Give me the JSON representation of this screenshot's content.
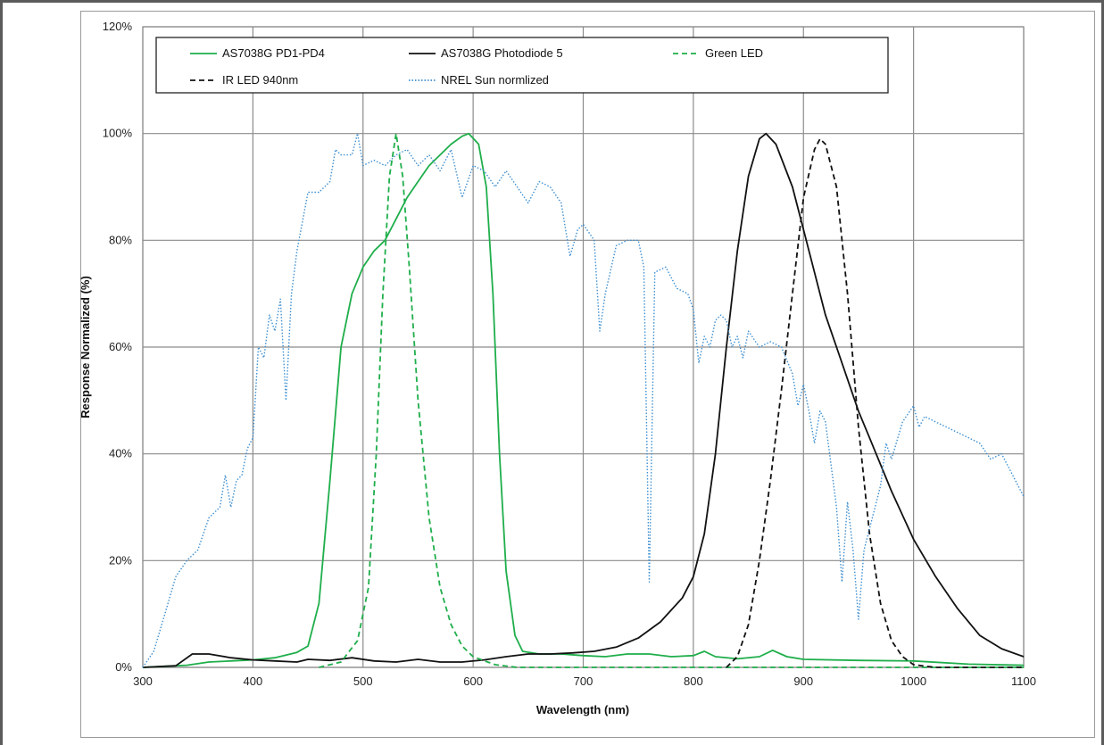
{
  "chart_data": {
    "type": "line",
    "title": "",
    "xlabel": "Wavelength (nm)",
    "ylabel": "Response  Normalized (%)",
    "xlim": [
      300,
      1100
    ],
    "ylim": [
      0,
      120
    ],
    "x_ticks": [
      "300",
      "400",
      "500",
      "600",
      "700",
      "800",
      "900",
      "1000",
      "1100"
    ],
    "y_ticks": [
      "0%",
      "20%",
      "40%",
      "60%",
      "80%",
      "100%",
      "120%"
    ],
    "grid": true,
    "legend_position": "top",
    "series": [
      {
        "name": "AS7038G PD1-PD4",
        "color": "#1fae4b",
        "style": "solid",
        "points": [
          [
            300,
            0
          ],
          [
            320,
            0.2
          ],
          [
            340,
            0.4
          ],
          [
            360,
            1
          ],
          [
            380,
            1.2
          ],
          [
            400,
            1.4
          ],
          [
            420,
            1.8
          ],
          [
            440,
            2.8
          ],
          [
            450,
            4
          ],
          [
            460,
            12
          ],
          [
            470,
            35
          ],
          [
            480,
            60
          ],
          [
            490,
            70
          ],
          [
            500,
            75
          ],
          [
            510,
            78
          ],
          [
            520,
            80
          ],
          [
            530,
            84
          ],
          [
            540,
            88
          ],
          [
            550,
            91
          ],
          [
            560,
            94
          ],
          [
            570,
            96
          ],
          [
            580,
            98
          ],
          [
            590,
            99.5
          ],
          [
            596,
            100
          ],
          [
            605,
            98
          ],
          [
            612,
            90
          ],
          [
            618,
            70
          ],
          [
            624,
            40
          ],
          [
            630,
            18
          ],
          [
            638,
            6
          ],
          [
            645,
            3
          ],
          [
            660,
            2.5
          ],
          [
            680,
            2.5
          ],
          [
            700,
            2.2
          ],
          [
            720,
            2
          ],
          [
            740,
            2.5
          ],
          [
            760,
            2.5
          ],
          [
            780,
            2
          ],
          [
            800,
            2.2
          ],
          [
            810,
            3
          ],
          [
            820,
            2
          ],
          [
            840,
            1.6
          ],
          [
            860,
            2
          ],
          [
            872,
            3.2
          ],
          [
            885,
            2
          ],
          [
            900,
            1.5
          ],
          [
            950,
            1.3
          ],
          [
            1000,
            1.2
          ],
          [
            1050,
            0.6
          ],
          [
            1100,
            0.4
          ]
        ]
      },
      {
        "name": "AS7038G Photodiode 5",
        "color": "#111111",
        "style": "solid",
        "points": [
          [
            300,
            0
          ],
          [
            330,
            0.3
          ],
          [
            345,
            2.5
          ],
          [
            360,
            2.5
          ],
          [
            380,
            1.8
          ],
          [
            400,
            1.4
          ],
          [
            420,
            1.2
          ],
          [
            440,
            1
          ],
          [
            450,
            1.5
          ],
          [
            470,
            1.3
          ],
          [
            490,
            1.8
          ],
          [
            510,
            1.2
          ],
          [
            530,
            1
          ],
          [
            550,
            1.5
          ],
          [
            570,
            1
          ],
          [
            590,
            1
          ],
          [
            610,
            1.4
          ],
          [
            630,
            2
          ],
          [
            650,
            2.5
          ],
          [
            670,
            2.5
          ],
          [
            690,
            2.7
          ],
          [
            710,
            3
          ],
          [
            730,
            3.8
          ],
          [
            750,
            5.5
          ],
          [
            770,
            8.5
          ],
          [
            790,
            13
          ],
          [
            800,
            17
          ],
          [
            810,
            25
          ],
          [
            820,
            40
          ],
          [
            830,
            60
          ],
          [
            840,
            78
          ],
          [
            850,
            92
          ],
          [
            860,
            99
          ],
          [
            866,
            100
          ],
          [
            875,
            98
          ],
          [
            890,
            90
          ],
          [
            900,
            82
          ],
          [
            910,
            74
          ],
          [
            920,
            66
          ],
          [
            930,
            60
          ],
          [
            940,
            54
          ],
          [
            950,
            48
          ],
          [
            960,
            43
          ],
          [
            980,
            33
          ],
          [
            1000,
            24
          ],
          [
            1020,
            17
          ],
          [
            1040,
            11
          ],
          [
            1060,
            6
          ],
          [
            1080,
            3.5
          ],
          [
            1100,
            2
          ]
        ]
      },
      {
        "name": "Green LED",
        "color": "#1fae4b",
        "style": "dashed",
        "points": [
          [
            460,
            0
          ],
          [
            480,
            1
          ],
          [
            495,
            5
          ],
          [
            505,
            15
          ],
          [
            512,
            40
          ],
          [
            518,
            70
          ],
          [
            524,
            92
          ],
          [
            530,
            100
          ],
          [
            536,
            92
          ],
          [
            542,
            75
          ],
          [
            550,
            50
          ],
          [
            560,
            28
          ],
          [
            570,
            15
          ],
          [
            580,
            8
          ],
          [
            590,
            4
          ],
          [
            600,
            2
          ],
          [
            620,
            0.5
          ],
          [
            640,
            0
          ],
          [
            700,
            0
          ],
          [
            800,
            0
          ],
          [
            900,
            0
          ],
          [
            1000,
            0
          ],
          [
            1100,
            0
          ]
        ]
      },
      {
        "name": "IR LED 940nm",
        "color": "#111111",
        "style": "dashed",
        "points": [
          [
            830,
            0
          ],
          [
            840,
            2
          ],
          [
            850,
            8
          ],
          [
            860,
            20
          ],
          [
            870,
            35
          ],
          [
            880,
            52
          ],
          [
            890,
            70
          ],
          [
            900,
            88
          ],
          [
            910,
            97
          ],
          [
            915,
            99
          ],
          [
            920,
            98
          ],
          [
            930,
            90
          ],
          [
            940,
            70
          ],
          [
            950,
            45
          ],
          [
            960,
            25
          ],
          [
            970,
            12
          ],
          [
            980,
            5
          ],
          [
            990,
            2
          ],
          [
            1000,
            0.5
          ],
          [
            1020,
            0
          ],
          [
            1100,
            0
          ]
        ]
      },
      {
        "name": "NREL Sun normlized",
        "color": "#3d8fd1",
        "style": "dotted",
        "points": [
          [
            300,
            0
          ],
          [
            310,
            3
          ],
          [
            320,
            10
          ],
          [
            330,
            17
          ],
          [
            340,
            20
          ],
          [
            350,
            22
          ],
          [
            360,
            28
          ],
          [
            370,
            30
          ],
          [
            375,
            36
          ],
          [
            380,
            30
          ],
          [
            385,
            35
          ],
          [
            390,
            36
          ],
          [
            395,
            41
          ],
          [
            400,
            43
          ],
          [
            405,
            60
          ],
          [
            410,
            58
          ],
          [
            415,
            66
          ],
          [
            420,
            63
          ],
          [
            425,
            69
          ],
          [
            430,
            50
          ],
          [
            435,
            70
          ],
          [
            440,
            78
          ],
          [
            450,
            89
          ],
          [
            460,
            89
          ],
          [
            470,
            91
          ],
          [
            475,
            97
          ],
          [
            480,
            96
          ],
          [
            490,
            96
          ],
          [
            495,
            100
          ],
          [
            500,
            94
          ],
          [
            510,
            95
          ],
          [
            520,
            94
          ],
          [
            530,
            96
          ],
          [
            540,
            97
          ],
          [
            550,
            94
          ],
          [
            560,
            96
          ],
          [
            570,
            93
          ],
          [
            580,
            97
          ],
          [
            590,
            88
          ],
          [
            600,
            94
          ],
          [
            610,
            93
          ],
          [
            620,
            90
          ],
          [
            630,
            93
          ],
          [
            640,
            90
          ],
          [
            650,
            87
          ],
          [
            660,
            91
          ],
          [
            670,
            90
          ],
          [
            680,
            87
          ],
          [
            688,
            77
          ],
          [
            695,
            82
          ],
          [
            700,
            83
          ],
          [
            710,
            80
          ],
          [
            715,
            63
          ],
          [
            720,
            70
          ],
          [
            730,
            79
          ],
          [
            740,
            80
          ],
          [
            750,
            80
          ],
          [
            755,
            75
          ],
          [
            760,
            16
          ],
          [
            765,
            74
          ],
          [
            775,
            75
          ],
          [
            785,
            71
          ],
          [
            795,
            70
          ],
          [
            800,
            67
          ],
          [
            805,
            57
          ],
          [
            810,
            62
          ],
          [
            815,
            60
          ],
          [
            820,
            65
          ],
          [
            825,
            66
          ],
          [
            830,
            65
          ],
          [
            835,
            60
          ],
          [
            840,
            62
          ],
          [
            845,
            58
          ],
          [
            850,
            63
          ],
          [
            860,
            60
          ],
          [
            870,
            61
          ],
          [
            880,
            60
          ],
          [
            890,
            55
          ],
          [
            895,
            49
          ],
          [
            900,
            53
          ],
          [
            905,
            48
          ],
          [
            910,
            42
          ],
          [
            915,
            48
          ],
          [
            920,
            46
          ],
          [
            925,
            38
          ],
          [
            930,
            30
          ],
          [
            935,
            16
          ],
          [
            940,
            31
          ],
          [
            945,
            22
          ],
          [
            950,
            9
          ],
          [
            955,
            22
          ],
          [
            960,
            26
          ],
          [
            970,
            34
          ],
          [
            975,
            42
          ],
          [
            980,
            39
          ],
          [
            990,
            46
          ],
          [
            1000,
            49
          ],
          [
            1005,
            45
          ],
          [
            1010,
            47
          ],
          [
            1020,
            46
          ],
          [
            1040,
            44
          ],
          [
            1060,
            42
          ],
          [
            1070,
            39
          ],
          [
            1080,
            40
          ],
          [
            1090,
            36
          ],
          [
            1100,
            32
          ]
        ]
      }
    ]
  }
}
